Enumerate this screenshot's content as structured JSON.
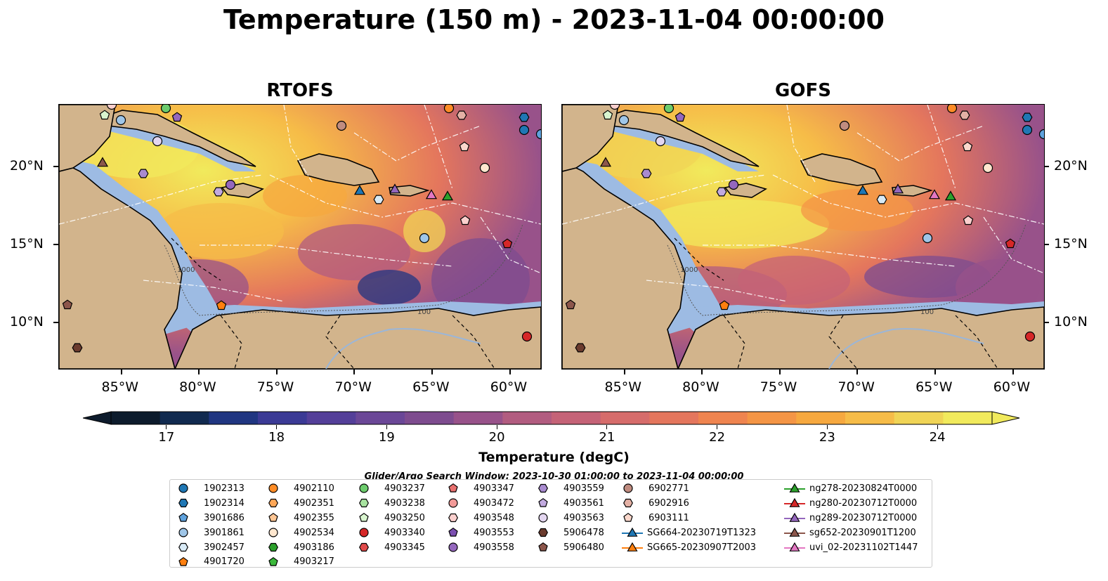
{
  "title": "Temperature (150 m) - 2023-11-04 00:00:00",
  "panels": [
    {
      "name": "RTOFS"
    },
    {
      "name": "GOFS"
    }
  ],
  "map": {
    "lon_range": [
      -89,
      -58
    ],
    "lat_range": [
      7,
      24
    ],
    "lon_ticks": [
      "85°W",
      "80°W",
      "75°W",
      "70°W",
      "65°W",
      "60°W"
    ],
    "lon_tick_values": [
      -85,
      -80,
      -75,
      -70,
      -65,
      -60
    ],
    "lat_ticks": [
      "20°N",
      "15°N",
      "10°N"
    ],
    "lat_tick_values": [
      20,
      15,
      10
    ],
    "land_color": "#d2b48c",
    "shelf_color": "#9dbbe3",
    "deep_color": "#0b2a3a",
    "contour_labels": [
      "1000",
      "1000",
      "100",
      "100"
    ]
  },
  "colorbar": {
    "label": "Temperature (degC)",
    "vmin": 16.5,
    "vmax": 24.5,
    "tick_labels": [
      "17",
      "18",
      "19",
      "20",
      "21",
      "22",
      "23",
      "24"
    ],
    "tick_values": [
      17,
      18,
      19,
      20,
      21,
      22,
      23,
      24
    ],
    "colors": [
      "#0d1b2c",
      "#112a4f",
      "#203681",
      "#3b3a95",
      "#543f99",
      "#6b4797",
      "#7e4c8f",
      "#98528a",
      "#b25c80",
      "#c56377",
      "#d66c6b",
      "#e4765d",
      "#ef844f",
      "#f49545",
      "#f6a83f",
      "#f6bc48",
      "#f0d456",
      "#f1ea5c"
    ]
  },
  "legend": {
    "title": "Glider/Argo Search Window: 2023-10-30 01:00:00 to 2023-11-04 00:00:00",
    "columns": [
      [
        {
          "label": "1902313",
          "marker": "circle",
          "color": "#1f77b4"
        },
        {
          "label": "1902314",
          "marker": "hexagon",
          "color": "#1f77b4"
        },
        {
          "label": "3901686",
          "marker": "pentagon",
          "color": "#5fa2dd"
        },
        {
          "label": "3901861",
          "marker": "circle",
          "color": "#9fc6e8"
        },
        {
          "label": "3902457",
          "marker": "hexagon",
          "color": "#d8eaf6"
        },
        {
          "label": "4901720",
          "marker": "pentagon",
          "color": "#ff7f0e"
        }
      ],
      [
        {
          "label": "4902110",
          "marker": "circle",
          "color": "#ff8c26"
        },
        {
          "label": "4902351",
          "marker": "hexagon",
          "color": "#ffa757"
        },
        {
          "label": "4902355",
          "marker": "pentagon",
          "color": "#ffc694"
        },
        {
          "label": "4902534",
          "marker": "circle",
          "color": "#ffe7cf"
        },
        {
          "label": "4903186",
          "marker": "hexagon",
          "color": "#2ca02c"
        },
        {
          "label": "4903217",
          "marker": "pentagon",
          "color": "#3ab83a"
        }
      ],
      [
        {
          "label": "4903237",
          "marker": "circle",
          "color": "#6dcc6d"
        },
        {
          "label": "4903238",
          "marker": "hexagon",
          "color": "#a8e3a0"
        },
        {
          "label": "4903250",
          "marker": "pentagon",
          "color": "#d9f5cf"
        },
        {
          "label": "4903340",
          "marker": "circle",
          "color": "#d62728"
        },
        {
          "label": "4903345",
          "marker": "hexagon",
          "color": "#e04a4a"
        }
      ],
      [
        {
          "label": "4903347",
          "marker": "pentagon",
          "color": "#e8706f"
        },
        {
          "label": "4903472",
          "marker": "circle",
          "color": "#f29a98"
        },
        {
          "label": "4903548",
          "marker": "hexagon",
          "color": "#fbd0ce"
        },
        {
          "label": "4903553",
          "marker": "pentagon",
          "color": "#7b4fb0"
        },
        {
          "label": "4903558",
          "marker": "circle",
          "color": "#9467bd"
        }
      ],
      [
        {
          "label": "4903559",
          "marker": "hexagon",
          "color": "#a98bd0"
        },
        {
          "label": "4903561",
          "marker": "pentagon",
          "color": "#c2aadf"
        },
        {
          "label": "4903563",
          "marker": "circle",
          "color": "#e3d6f0"
        },
        {
          "label": "5906478",
          "marker": "hexagon",
          "color": "#6b3b2e"
        },
        {
          "label": "5906480",
          "marker": "pentagon",
          "color": "#8c564b"
        }
      ],
      [
        {
          "label": "6902771",
          "marker": "circle",
          "color": "#c08c80"
        },
        {
          "label": "6902916",
          "marker": "hexagon",
          "color": "#e4b1a5"
        },
        {
          "label": "6903111",
          "marker": "pentagon",
          "color": "#fbd8cc"
        },
        {
          "label": "SG664-20230719T1323",
          "marker": "triangle-line",
          "color": "#1f77b4"
        },
        {
          "label": "SG665-20230907T2003",
          "marker": "triangle-line",
          "color": "#ff7f0e"
        }
      ],
      [
        {
          "label": "ng278-20230824T0000",
          "marker": "triangle-line",
          "color": "#2ca02c"
        },
        {
          "label": "ng280-20230712T0000",
          "marker": "triangle-line",
          "color": "#d62728"
        },
        {
          "label": "ng289-20230712T0000",
          "marker": "triangle-line",
          "color": "#9467bd"
        },
        {
          "label": "sg652-20230901T1200",
          "marker": "triangle-line",
          "color": "#8c564b"
        },
        {
          "label": "uvi_02-20231102T1447",
          "marker": "triangle-line",
          "color": "#e377c2"
        }
      ]
    ]
  }
}
